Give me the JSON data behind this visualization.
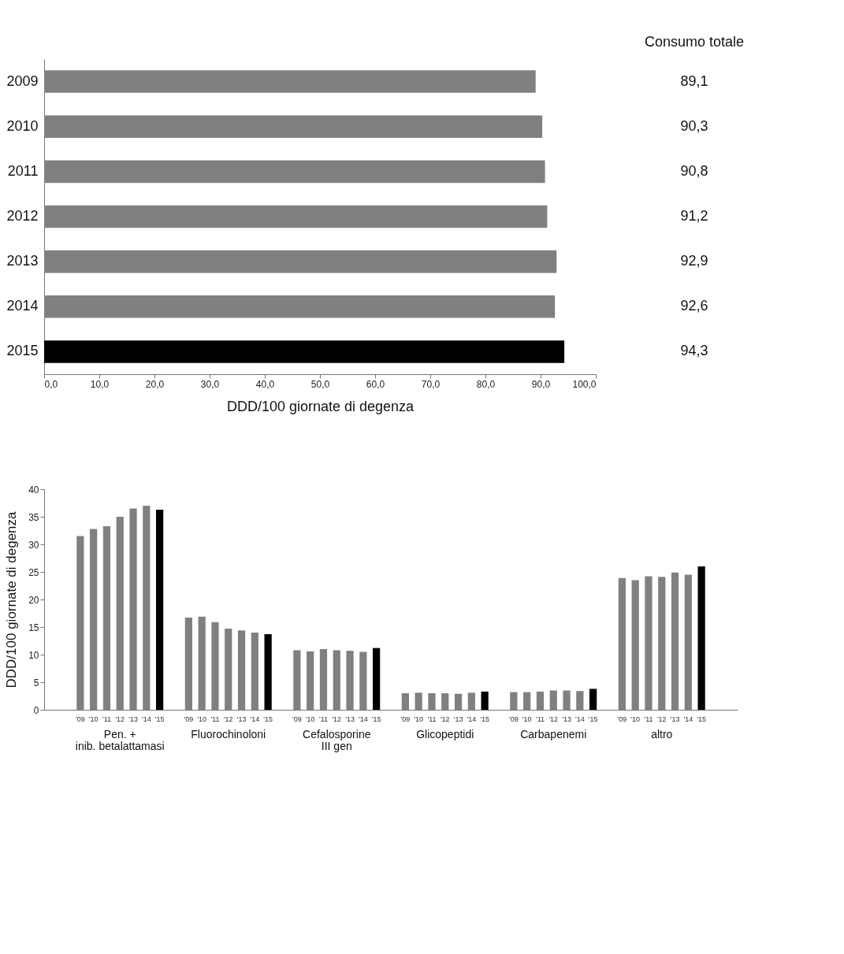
{
  "chart_data": [
    {
      "type": "bar",
      "orientation": "horizontal",
      "xlabel": "DDD/100 giornate di degenza",
      "annotations": [
        "Consumo totale"
      ],
      "categories": [
        "2009",
        "2010",
        "2011",
        "2012",
        "2013",
        "2014",
        "2015"
      ],
      "values": [
        89.1,
        90.3,
        90.8,
        91.2,
        92.9,
        92.6,
        94.3
      ],
      "value_labels": [
        "89,1",
        "90,3",
        "90,8",
        "91,2",
        "92,9",
        "92,6",
        "94,3"
      ],
      "colors": [
        "#808080",
        "#808080",
        "#808080",
        "#808080",
        "#808080",
        "#808080",
        "#000000"
      ],
      "xlim": [
        0,
        100
      ],
      "xticks": [
        {
          "value": 0,
          "label": "0,0"
        },
        {
          "value": 10,
          "label": "10,0"
        },
        {
          "value": 20,
          "label": "20,0"
        },
        {
          "value": 30,
          "label": "30,0"
        },
        {
          "value": 40,
          "label": "40,0"
        },
        {
          "value": 50,
          "label": "50,0"
        },
        {
          "value": 60,
          "label": "60,0"
        },
        {
          "value": 70,
          "label": "70,0"
        },
        {
          "value": 80,
          "label": "80,0"
        },
        {
          "value": 90,
          "label": "90,0"
        },
        {
          "value": 100,
          "label": "100,0"
        }
      ]
    },
    {
      "type": "bar",
      "ylabel": "DDD/100 giornate di degenza",
      "categories": [
        "Pen. +\ninib. betalattamasi",
        "Fluorochinoloni",
        "Cefalosporine\nIII gen",
        "Glicopeptidi",
        "Carbapenemi",
        "altro"
      ],
      "series": [
        {
          "name": "'09",
          "color": "#808080",
          "values": [
            31.5,
            16.7,
            10.8,
            3.0,
            3.2,
            23.9
          ]
        },
        {
          "name": "'10",
          "color": "#808080",
          "values": [
            32.8,
            16.9,
            10.6,
            3.1,
            3.2,
            23.5
          ]
        },
        {
          "name": "'11",
          "color": "#808080",
          "values": [
            33.3,
            15.9,
            11.0,
            3.0,
            3.3,
            24.2
          ]
        },
        {
          "name": "'12",
          "color": "#808080",
          "values": [
            35.0,
            14.7,
            10.8,
            3.0,
            3.5,
            24.1
          ]
        },
        {
          "name": "'13",
          "color": "#808080",
          "values": [
            36.5,
            14.4,
            10.7,
            2.9,
            3.5,
            24.9
          ]
        },
        {
          "name": "'14",
          "color": "#808080",
          "values": [
            37.0,
            14.0,
            10.5,
            3.1,
            3.4,
            24.5
          ]
        },
        {
          "name": "'15",
          "color": "#000000",
          "values": [
            36.3,
            13.7,
            11.2,
            3.3,
            3.8,
            26.0
          ]
        }
      ],
      "ylim": [
        0,
        40
      ],
      "yticks": [
        0,
        5,
        10,
        15,
        20,
        25,
        30,
        35,
        40
      ]
    }
  ]
}
